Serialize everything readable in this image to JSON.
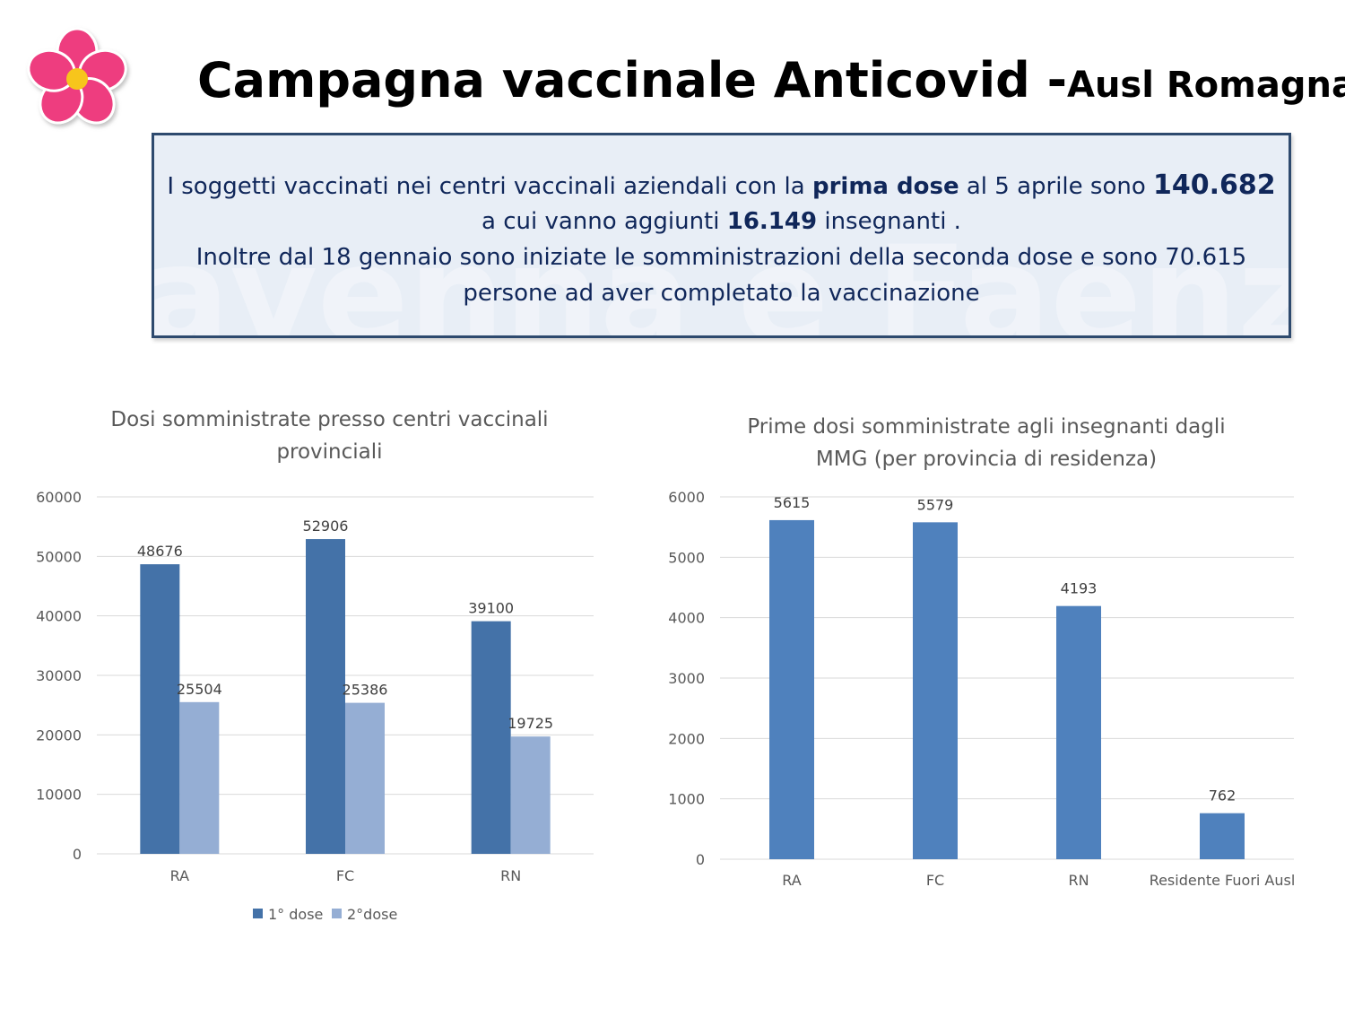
{
  "header": {
    "title_main": "Campagna vaccinale Anticovid -",
    "title_sub": "Ausl Romagna",
    "logo": "flower-logo"
  },
  "infobox": {
    "l1_pre": "I soggetti vaccinati nei centri vaccinali aziendali con la ",
    "l1_bold": "prima dose",
    "l1_post": " al 5 aprile sono ",
    "l1_num": "140.682",
    "l2_pre": "a cui vanno aggiunti ",
    "l2_bold": "16.149",
    "l2_post": " insegnanti .",
    "l3": "Inoltre dal 18 gennaio sono iniziate le somministrazioni della  seconda dose  e sono  70.615",
    "l4": "persone ad aver completato la vaccinazione",
    "watermark": "Ravenna e Faenza"
  },
  "colors": {
    "dose1": "#4472a8",
    "dose2": "#95aed4",
    "single": "#4f81bd",
    "grid": "#d9d9d9",
    "axis_text": "#595959"
  },
  "chart_data": [
    {
      "type": "bar",
      "title_line1": "Dosi somministrate presso centri vaccinali",
      "title_line2": "provinciali",
      "categories": [
        "RA",
        "FC",
        "RN"
      ],
      "series": [
        {
          "name": "1° dose",
          "values": [
            48676,
            52906,
            39100
          ]
        },
        {
          "name": "2°dose",
          "values": [
            25504,
            25386,
            19725
          ]
        }
      ],
      "ylim": [
        0,
        60000
      ],
      "yticks": [
        0,
        10000,
        20000,
        30000,
        40000,
        50000,
        60000
      ],
      "grid": true,
      "legend": "bottom"
    },
    {
      "type": "bar",
      "title_line1": "Prime dosi somministrate agli insegnanti dagli",
      "title_line2": "MMG (per provincia di residenza)",
      "categories": [
        "RA",
        "FC",
        "RN",
        "Residente Fuori Ausl"
      ],
      "values": [
        5615,
        5579,
        4193,
        762
      ],
      "ylim": [
        0,
        6000
      ],
      "yticks": [
        0,
        1000,
        2000,
        3000,
        4000,
        5000,
        6000
      ],
      "grid": true,
      "legend": "none"
    }
  ]
}
